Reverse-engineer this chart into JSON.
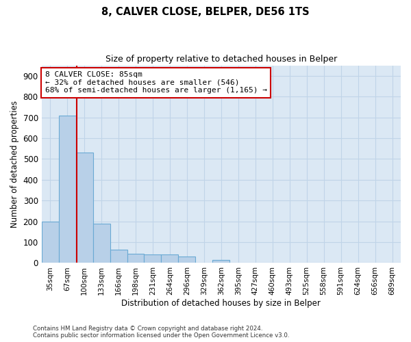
{
  "title": "8, CALVER CLOSE, BELPER, DE56 1TS",
  "subtitle": "Size of property relative to detached houses in Belper",
  "xlabel": "Distribution of detached houses by size in Belper",
  "ylabel": "Number of detached properties",
  "footnote1": "Contains HM Land Registry data © Crown copyright and database right 2024.",
  "footnote2": "Contains public sector information licensed under the Open Government Licence v3.0.",
  "categories": [
    "35sqm",
    "67sqm",
    "100sqm",
    "133sqm",
    "166sqm",
    "198sqm",
    "231sqm",
    "264sqm",
    "296sqm",
    "329sqm",
    "362sqm",
    "395sqm",
    "427sqm",
    "460sqm",
    "493sqm",
    "525sqm",
    "558sqm",
    "591sqm",
    "624sqm",
    "656sqm",
    "689sqm"
  ],
  "values": [
    200,
    710,
    530,
    190,
    65,
    45,
    42,
    42,
    30,
    0,
    15,
    0,
    0,
    0,
    0,
    0,
    0,
    0,
    0,
    0,
    0
  ],
  "bar_color": "#b8d0e8",
  "bar_edge_color": "#6aaad4",
  "grid_color": "#c0d4e8",
  "background_color": "#dbe8f4",
  "vline_color": "#cc0000",
  "annotation_text": "8 CALVER CLOSE: 85sqm\n← 32% of detached houses are smaller (546)\n68% of semi-detached houses are larger (1,165) →",
  "annotation_box_color": "white",
  "annotation_box_edge_color": "#cc0000",
  "ylim": [
    0,
    950
  ],
  "yticks": [
    0,
    100,
    200,
    300,
    400,
    500,
    600,
    700,
    800,
    900
  ],
  "vline_pos": 1.55
}
